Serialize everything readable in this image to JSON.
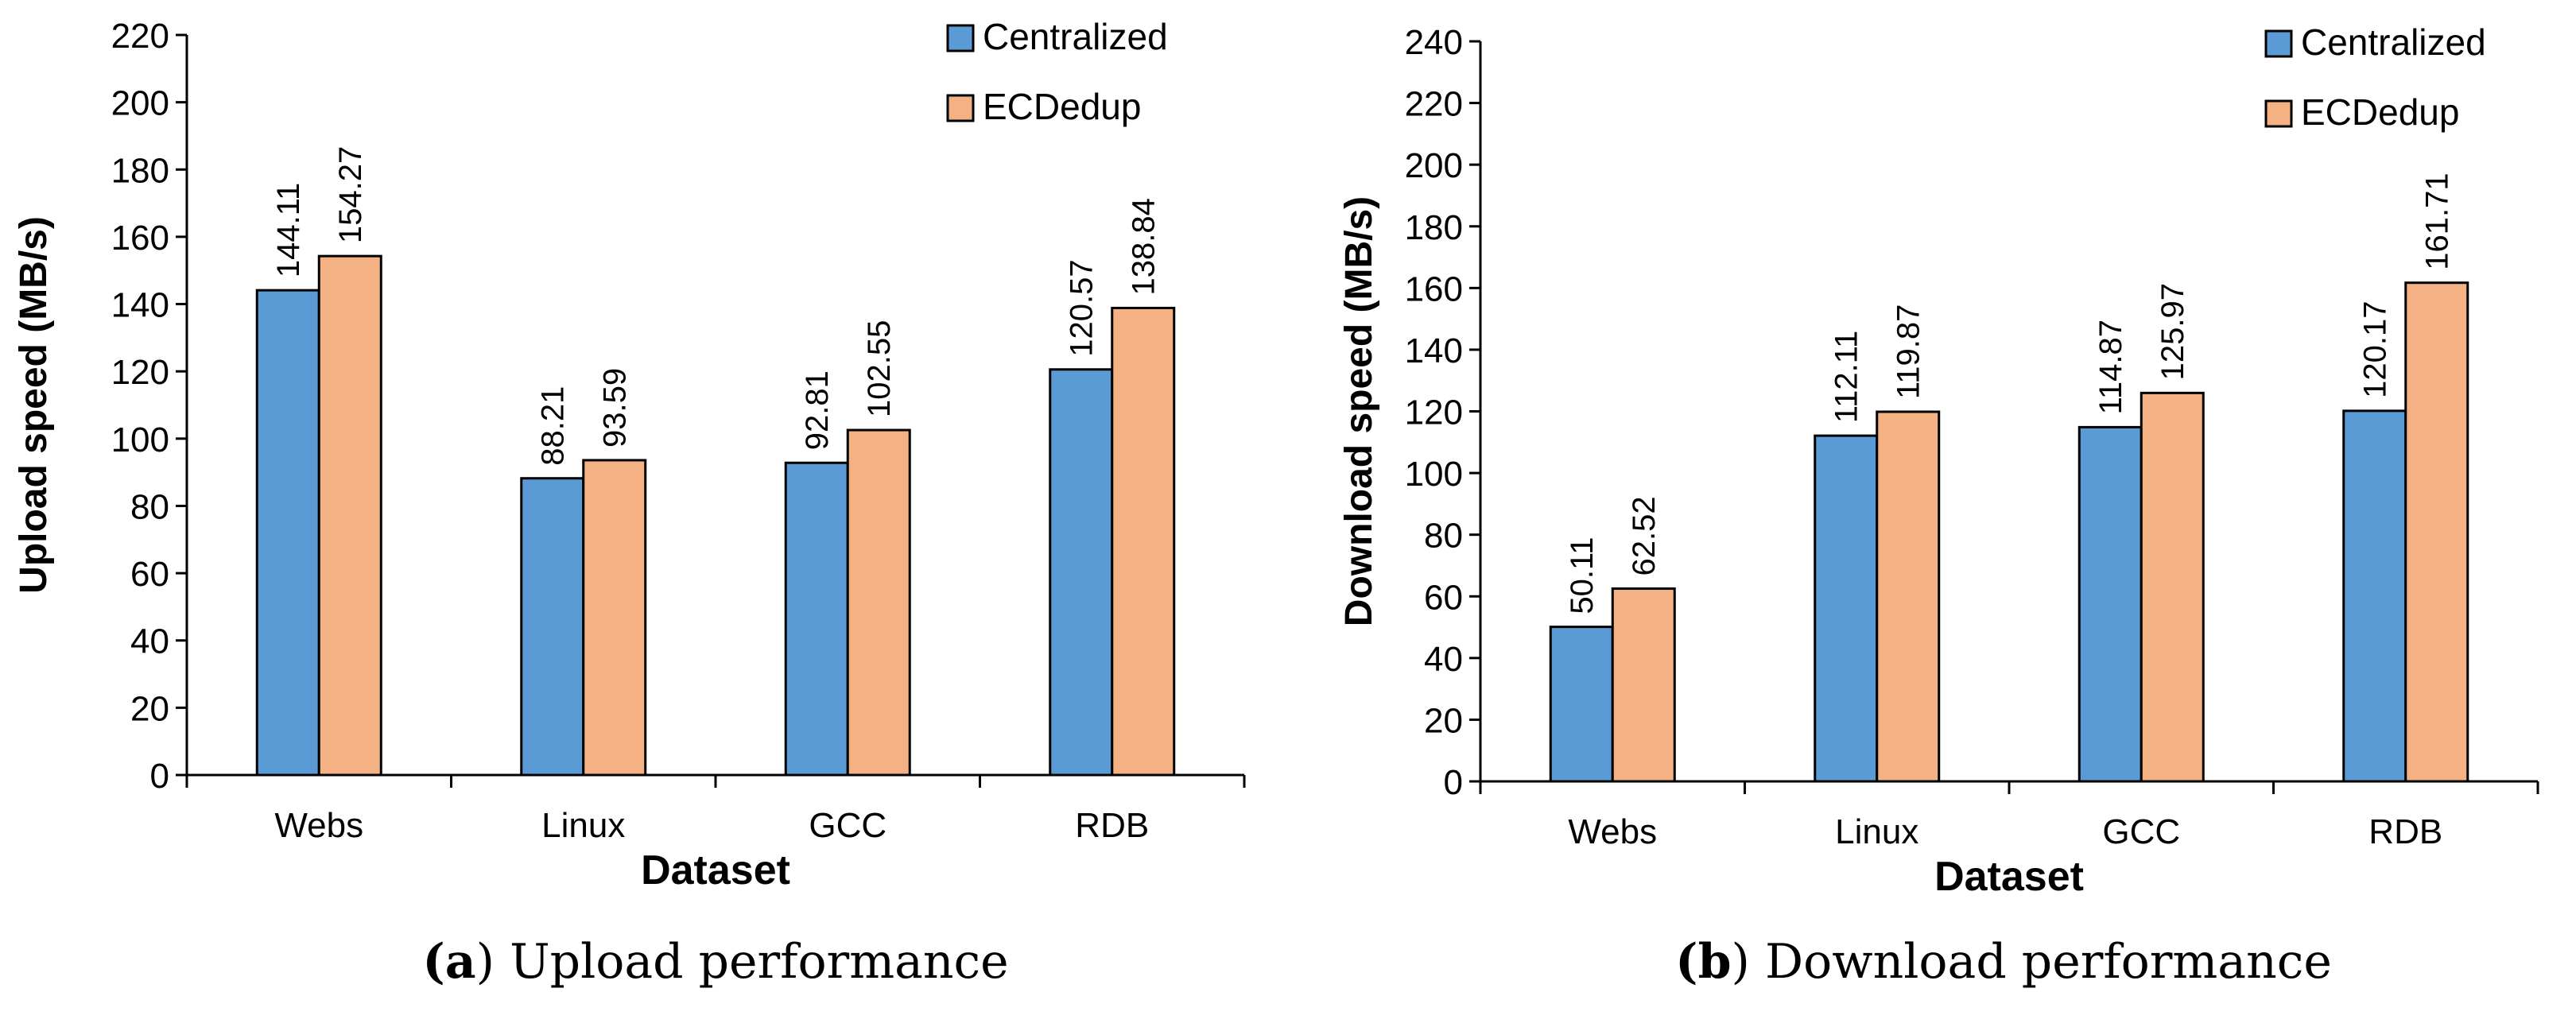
{
  "colors": {
    "centralized": "#5B9BD5",
    "ecdedup": "#F4B183",
    "axis": "#000000"
  },
  "chart_data": [
    {
      "type": "bar",
      "categories": [
        "Webs",
        "Linux",
        "GCC",
        "RDB"
      ],
      "series": [
        {
          "name": "Centralized",
          "values": [
            144.11,
            88.21,
            92.81,
            120.57
          ]
        },
        {
          "name": "ECDedup",
          "values": [
            154.27,
            93.59,
            102.55,
            138.84
          ]
        }
      ],
      "data_labels": [
        [
          "144.11",
          "88.21",
          "92.81",
          "120.57"
        ],
        [
          "154.27",
          "93.59",
          "102.55",
          "138.84"
        ]
      ],
      "xlabel": "Dataset",
      "ylabel": "Upload speed (MB/s)",
      "ylim": [
        0,
        220
      ],
      "yticks": [
        0,
        20,
        40,
        60,
        80,
        100,
        120,
        140,
        160,
        180,
        200,
        220
      ],
      "legend": "top-right",
      "grid": false,
      "caption": {
        "label": "(a)",
        "text": "Upload performance"
      }
    },
    {
      "type": "bar",
      "categories": [
        "Webs",
        "Linux",
        "GCC",
        "RDB"
      ],
      "series": [
        {
          "name": "Centralized",
          "values": [
            50.11,
            112.11,
            114.87,
            120.17
          ]
        },
        {
          "name": "ECDedup",
          "values": [
            62.52,
            119.87,
            125.97,
            161.71
          ]
        }
      ],
      "data_labels": [
        [
          "50.11",
          "112.11",
          "114.87",
          "120.17"
        ],
        [
          "62.52",
          "119.87",
          "125.97",
          "161.71"
        ]
      ],
      "xlabel": "Dataset",
      "ylabel": "Download speed (MB/s)",
      "ylim": [
        0,
        240
      ],
      "yticks": [
        0,
        20,
        40,
        60,
        80,
        100,
        120,
        140,
        160,
        180,
        200,
        220,
        240
      ],
      "legend": "top-right",
      "grid": false,
      "caption": {
        "label": "(b)",
        "text": "Download performance"
      }
    }
  ]
}
